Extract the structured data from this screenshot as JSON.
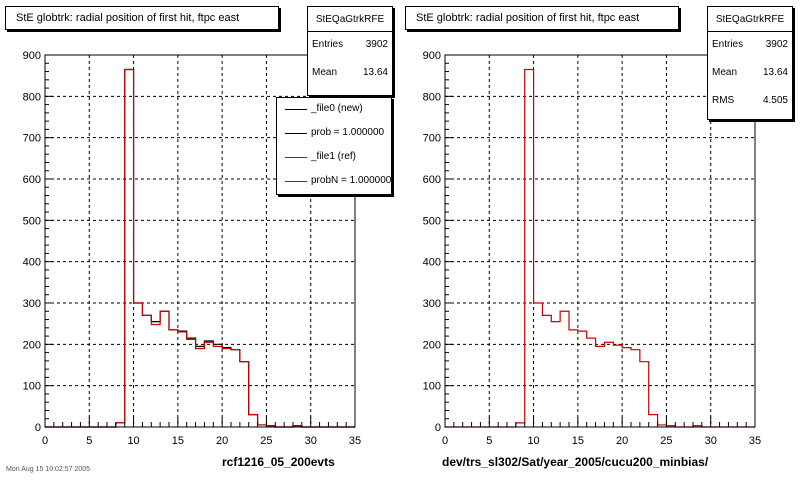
{
  "chart_data": [
    {
      "type": "bar",
      "title": "StE globtrk: radial position of first hit, ftpc east",
      "xlabel": "rcf1216_05_200evts",
      "ylabel": "",
      "xlim": [
        0,
        35
      ],
      "ylim": [
        0,
        900
      ],
      "xticks": [
        0,
        5,
        10,
        15,
        20,
        25,
        30,
        35
      ],
      "yticks": [
        0,
        100,
        200,
        300,
        400,
        500,
        600,
        700,
        800,
        900
      ],
      "grid": true,
      "bin_width": 1,
      "bin_edges_start": 0,
      "series": [
        {
          "name": "_file0 (new)",
          "color": "#000000",
          "values": [
            0,
            0,
            0,
            0,
            0,
            0,
            0,
            0,
            10,
            865,
            300,
            270,
            255,
            280,
            235,
            232,
            215,
            195,
            208,
            200,
            192,
            187,
            158,
            30,
            5,
            3,
            0,
            0,
            3,
            0,
            0,
            0,
            0,
            0,
            0
          ]
        },
        {
          "name": "_file1 (ref)",
          "color": "#cc0000",
          "values": [
            0,
            0,
            0,
            0,
            0,
            0,
            0,
            0,
            10,
            865,
            300,
            270,
            248,
            280,
            235,
            230,
            212,
            190,
            205,
            195,
            190,
            187,
            158,
            30,
            5,
            3,
            0,
            0,
            3,
            0,
            0,
            0,
            0,
            0,
            0
          ]
        }
      ],
      "legend": {
        "placement": "top-right",
        "entries": [
          "_file0 (new)",
          "prob = 1.000000",
          "_file1 (ref)",
          "probN = 1.000000"
        ]
      },
      "stats": {
        "name": "StEQaGtrkRFE",
        "entries": "3902",
        "mean": "13.64"
      }
    },
    {
      "type": "bar",
      "title": "StE globtrk: radial position of first hit, ftpc east",
      "xlabel": "dev/trs_sl302/Sat/year_2005/cucu200_minbias/",
      "ylabel": "",
      "xlim": [
        0,
        35
      ],
      "ylim": [
        0,
        900
      ],
      "xticks": [
        0,
        5,
        10,
        15,
        20,
        25,
        30,
        35
      ],
      "yticks": [
        0,
        100,
        200,
        300,
        400,
        500,
        600,
        700,
        800,
        900
      ],
      "grid": true,
      "bin_width": 1,
      "bin_edges_start": 0,
      "series": [
        {
          "name": "",
          "color": "#cc0000",
          "values": [
            0,
            0,
            0,
            0,
            0,
            0,
            0,
            0,
            10,
            865,
            300,
            270,
            255,
            280,
            235,
            232,
            215,
            195,
            205,
            198,
            192,
            187,
            158,
            30,
            5,
            3,
            0,
            0,
            3,
            0,
            0,
            0,
            0,
            0,
            0
          ]
        }
      ],
      "stats": {
        "name": "StEQaGtrkRFE",
        "entries": "3902",
        "mean": "13.64",
        "rms": "4.505"
      }
    }
  ],
  "left": {
    "title": "StE globtrk: radial position of first hit, ftpc east",
    "stats": {
      "name": "StEQaGtrkRFE",
      "entries_label": "Entries",
      "entries": "3902",
      "mean_label": "Mean",
      "mean": "13.64"
    },
    "legend": [
      {
        "label": "_file0 (new)",
        "color": "#000000"
      },
      {
        "label": "prob = 1.000000",
        "color": "#000000"
      },
      {
        "label": "_file1 (ref)",
        "color": "#cc0000"
      },
      {
        "label": "probN = 1.000000",
        "color": "#cc0000"
      }
    ],
    "caption": "rcf1216_05_200evts"
  },
  "right": {
    "title": "StE globtrk: radial position of first hit, ftpc east",
    "stats": {
      "name": "StEQaGtrkRFE",
      "entries_label": "Entries",
      "entries": "3902",
      "mean_label": "Mean",
      "mean": "13.64",
      "rms_label": "RMS",
      "rms": "4.505"
    },
    "caption": "dev/trs_sl302/Sat/year_2005/cucu200_minbias/"
  },
  "footnote": "Mon Aug 15 10:02:57 2005"
}
